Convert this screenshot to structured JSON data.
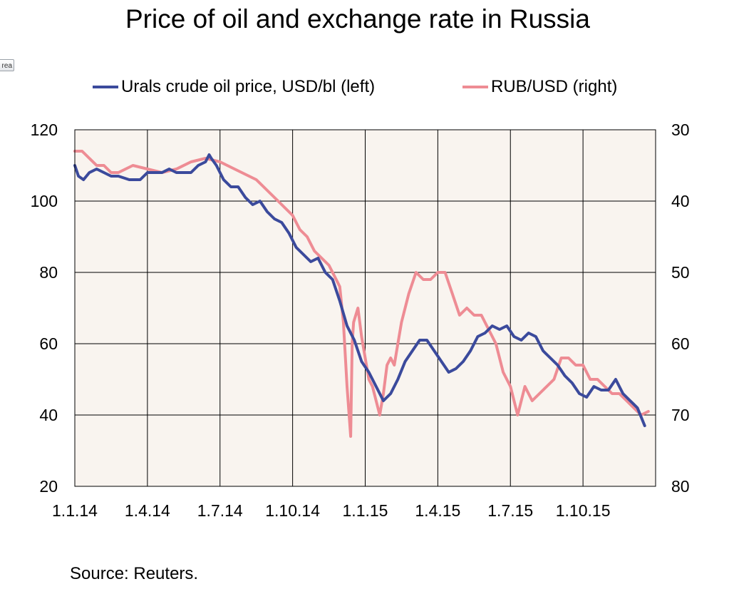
{
  "title": "Price of oil and exchange rate in Russia",
  "corner_tag": "rea",
  "source": "Source: Reuters.",
  "colors": {
    "oil": "#3b4a9c",
    "rub": "#ee8c94",
    "plot_bg": "#f9f4ef",
    "grid": "#000000"
  },
  "chart_data": {
    "type": "line",
    "title": "Price of oil and exchange rate in Russia",
    "x_ticks": [
      "1.1.14",
      "1.4.14",
      "1.7.14",
      "1.10.14",
      "1.1.15",
      "1.4.15",
      "1.7.15",
      "1.10.15"
    ],
    "x_range": [
      0,
      8
    ],
    "left_axis": {
      "label": "Urals crude oil price, USD/bl",
      "range": [
        20,
        120
      ],
      "ticks": [
        "120",
        "100",
        "80",
        "60",
        "40",
        "20"
      ]
    },
    "right_axis": {
      "label": "RUB/USD",
      "range": [
        30,
        80
      ],
      "inverted": true,
      "ticks": [
        "30",
        "40",
        "50",
        "60",
        "70",
        "80"
      ]
    },
    "grid": true,
    "legend_position": "top",
    "series": [
      {
        "name": "Urals crude oil price, USD/bl (left)",
        "axis": "left",
        "x": [
          0,
          0.05,
          0.12,
          0.2,
          0.3,
          0.4,
          0.5,
          0.6,
          0.75,
          0.9,
          1.0,
          1.1,
          1.2,
          1.3,
          1.4,
          1.5,
          1.6,
          1.7,
          1.8,
          1.85,
          1.88,
          1.95,
          2.05,
          2.15,
          2.25,
          2.35,
          2.45,
          2.55,
          2.65,
          2.75,
          2.85,
          2.95,
          3.05,
          3.15,
          3.25,
          3.35,
          3.45,
          3.55,
          3.65,
          3.75,
          3.85,
          3.95,
          4.05,
          4.15,
          4.25,
          4.35,
          4.45,
          4.55,
          4.65,
          4.75,
          4.85,
          4.95,
          5.05,
          5.15,
          5.25,
          5.35,
          5.45,
          5.55,
          5.65,
          5.75,
          5.85,
          5.95,
          6.05,
          6.15,
          6.25,
          6.35,
          6.45,
          6.55,
          6.65,
          6.75,
          6.85,
          6.95,
          7.05,
          7.15,
          7.25,
          7.35,
          7.45,
          7.55,
          7.65,
          7.75,
          7.85
        ],
        "values": [
          110,
          107,
          106,
          108,
          109,
          108,
          107,
          107,
          106,
          106,
          108,
          108,
          108,
          109,
          108,
          108,
          108,
          110,
          111,
          113,
          112,
          110,
          106,
          104,
          104,
          101,
          99,
          100,
          97,
          95,
          94,
          91,
          87,
          85,
          83,
          84,
          80,
          78,
          72,
          65,
          61,
          55,
          52,
          48,
          44,
          46,
          50,
          55,
          58,
          61,
          61,
          58,
          55,
          52,
          53,
          55,
          58,
          62,
          63,
          65,
          64,
          65,
          62,
          61,
          63,
          62,
          58,
          56,
          54,
          51,
          49,
          46,
          45,
          48,
          47,
          47,
          50,
          46,
          44,
          42,
          37
        ]
      },
      {
        "name": "RUB/USD (right)",
        "axis": "right",
        "x": [
          0,
          0.1,
          0.2,
          0.3,
          0.4,
          0.5,
          0.6,
          0.8,
          1.0,
          1.2,
          1.4,
          1.6,
          1.8,
          2.0,
          2.1,
          2.2,
          2.3,
          2.4,
          2.5,
          2.6,
          2.7,
          2.8,
          2.9,
          3.0,
          3.1,
          3.2,
          3.3,
          3.4,
          3.5,
          3.6,
          3.65,
          3.7,
          3.75,
          3.8,
          3.82,
          3.84,
          3.9,
          3.95,
          4.0,
          4.05,
          4.1,
          4.15,
          4.2,
          4.25,
          4.3,
          4.35,
          4.4,
          4.45,
          4.5,
          4.6,
          4.7,
          4.8,
          4.9,
          5.0,
          5.1,
          5.2,
          5.3,
          5.4,
          5.5,
          5.6,
          5.7,
          5.8,
          5.9,
          6.0,
          6.1,
          6.2,
          6.3,
          6.4,
          6.5,
          6.6,
          6.7,
          6.8,
          6.9,
          7.0,
          7.1,
          7.2,
          7.3,
          7.4,
          7.5,
          7.6,
          7.7,
          7.8,
          7.9
        ],
        "values": [
          33,
          33,
          34,
          35,
          35,
          36,
          36,
          35,
          35.5,
          36,
          35.5,
          34.5,
          34,
          34.5,
          35,
          35.5,
          36,
          36.5,
          37,
          38,
          39,
          40,
          41,
          42,
          44,
          45,
          47,
          48,
          49,
          51,
          52,
          57,
          66,
          73,
          60,
          57,
          55,
          59,
          62,
          65,
          66,
          68,
          70,
          67,
          63,
          62,
          63,
          60,
          57,
          53,
          50,
          51,
          51,
          50,
          50,
          53,
          56,
          55,
          56,
          56,
          58,
          60,
          64,
          66,
          70,
          66,
          68,
          67,
          66,
          65,
          62,
          62,
          63,
          63,
          65,
          65,
          66,
          67,
          67,
          68,
          69,
          70,
          69.5
        ]
      }
    ]
  }
}
